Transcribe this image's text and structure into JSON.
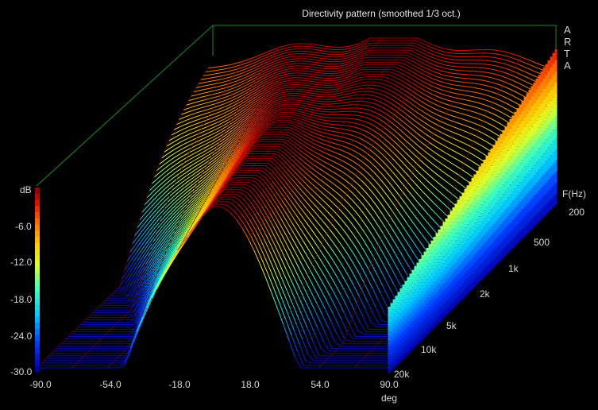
{
  "chart_data": {
    "type": "surface",
    "title": "Directivity pattern (smoothed 1/3 oct.)",
    "brand_letters": [
      "A",
      "R",
      "T",
      "A"
    ],
    "x_axis": {
      "label": "deg",
      "ticks": [
        "-90.0",
        "-54.0",
        "-18.0",
        "18.0",
        "54.0",
        "90.0"
      ],
      "range": [
        -90,
        90
      ]
    },
    "z_axis": {
      "label": "F(Hz)",
      "ticks": [
        "200",
        "500",
        "1k",
        "2k",
        "5k",
        "10k",
        "20k"
      ],
      "range": [
        200,
        20000
      ],
      "scale": "log"
    },
    "color_scale": {
      "label": "dB",
      "ticks": [
        "-6.0",
        "-12.0",
        "-18.0",
        "-24.0",
        "-30.0"
      ],
      "range": [
        -30,
        0
      ]
    },
    "colors": {
      "frame": "#1e8c1e",
      "background": "#000000"
    }
  }
}
